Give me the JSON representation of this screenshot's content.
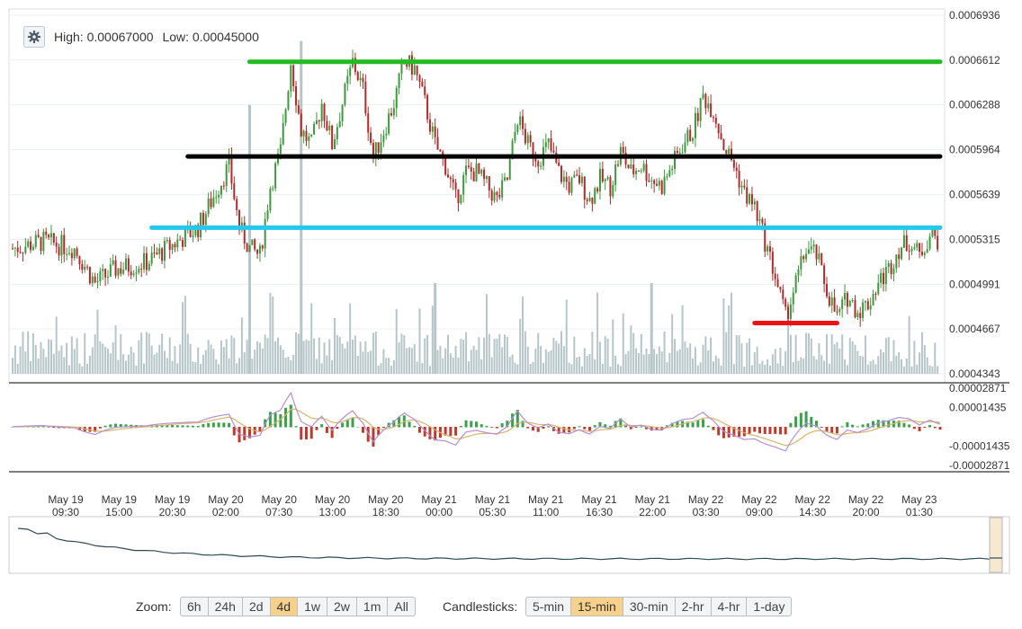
{
  "info": {
    "high_label": "High: 0.00067000",
    "low_label": "Low: 0.00045000",
    "settings_icon": "gear-icon"
  },
  "zoom": {
    "label": "Zoom:",
    "options": [
      "6h",
      "24h",
      "2d",
      "4d",
      "1w",
      "2w",
      "1m",
      "All"
    ],
    "active": "4d"
  },
  "candles": {
    "label": "Candlesticks:",
    "options": [
      "5-min",
      "15-min",
      "30-min",
      "2-hr",
      "4-hr",
      "1-day"
    ],
    "active": "15-min"
  },
  "colors": {
    "up": "#3c9a3c",
    "down": "#b32a2a",
    "volume": "#b6c6c8",
    "macd_pos": "#3aa04a",
    "macd_neg": "#c0392b",
    "signal": "#d9b46a",
    "macd_line": "#b48fd4",
    "navigator": "#2f4a55"
  },
  "chart_data": [
    {
      "type": "candlestick",
      "title": "",
      "y_ticks": [
        "0.0006936",
        "0.0006612",
        "0.0006288",
        "0.0005964",
        "0.0005639",
        "0.0005315",
        "0.0004991",
        "0.0004667",
        "0.0004343"
      ],
      "ylim": [
        0.0004343,
        0.0006936
      ],
      "x_ticks": [
        {
          "date": "May 19",
          "time": "09:30"
        },
        {
          "date": "May 19",
          "time": "15:00"
        },
        {
          "date": "May 19",
          "time": "20:30"
        },
        {
          "date": "May 20",
          "time": "02:00"
        },
        {
          "date": "May 20",
          "time": "07:30"
        },
        {
          "date": "May 20",
          "time": "13:00"
        },
        {
          "date": "May 20",
          "time": "18:30"
        },
        {
          "date": "May 21",
          "time": "00:00"
        },
        {
          "date": "May 21",
          "time": "05:30"
        },
        {
          "date": "May 21",
          "time": "11:00"
        },
        {
          "date": "May 21",
          "time": "16:30"
        },
        {
          "date": "May 21",
          "time": "22:00"
        },
        {
          "date": "May 22",
          "time": "03:30"
        },
        {
          "date": "May 22",
          "time": "09:00"
        },
        {
          "date": "May 22",
          "time": "14:30"
        },
        {
          "date": "May 22",
          "time": "20:00"
        },
        {
          "date": "May 23",
          "time": "01:30"
        }
      ],
      "price_path": [
        [
          0,
          0.000525
        ],
        [
          3,
          0.00053
        ],
        [
          6,
          0.000525
        ],
        [
          8,
          0.0005
        ],
        [
          10,
          0.00051
        ],
        [
          13,
          0.000515
        ],
        [
          16,
          0.00053
        ],
        [
          18,
          0.00054
        ],
        [
          20,
          0.00057
        ],
        [
          21,
          0.000585
        ],
        [
          22,
          0.00054
        ],
        [
          23,
          0.000525
        ],
        [
          24,
          0.00052
        ],
        [
          25,
          0.00057
        ],
        [
          26,
          0.000595
        ],
        [
          27,
          0.00066
        ],
        [
          28,
          0.00061
        ],
        [
          29,
          0.0006
        ],
        [
          30,
          0.00063
        ],
        [
          31,
          0.0006
        ],
        [
          32,
          0.00063
        ],
        [
          33,
          0.00066
        ],
        [
          34,
          0.00064
        ],
        [
          35,
          0.00059
        ],
        [
          36,
          0.00061
        ],
        [
          37,
          0.00063
        ],
        [
          38,
          0.00066
        ],
        [
          39,
          0.000655
        ],
        [
          40,
          0.00063
        ],
        [
          41,
          0.0006
        ],
        [
          42,
          0.000585
        ],
        [
          43,
          0.00056
        ],
        [
          44,
          0.00058
        ],
        [
          45,
          0.00058
        ],
        [
          46,
          0.00057
        ],
        [
          47,
          0.00056
        ],
        [
          48,
          0.000575
        ],
        [
          49,
          0.00062
        ],
        [
          50,
          0.0006
        ],
        [
          51,
          0.00059
        ],
        [
          52,
          0.0006
        ],
        [
          53,
          0.00058
        ],
        [
          54,
          0.00057
        ],
        [
          55,
          0.000575
        ],
        [
          56,
          0.00056
        ],
        [
          57,
          0.000575
        ],
        [
          58,
          0.00057
        ],
        [
          59,
          0.000595
        ],
        [
          60,
          0.00058
        ],
        [
          61,
          0.000585
        ],
        [
          62,
          0.000575
        ],
        [
          63,
          0.00057
        ],
        [
          64,
          0.000585
        ],
        [
          65,
          0.0006
        ],
        [
          66,
          0.00061
        ],
        [
          67,
          0.000635
        ],
        [
          68,
          0.000625
        ],
        [
          69,
          0.0006
        ],
        [
          70,
          0.000585
        ],
        [
          71,
          0.000565
        ],
        [
          72,
          0.000555
        ],
        [
          73,
          0.00053
        ],
        [
          74,
          0.000505
        ],
        [
          75,
          0.000475
        ],
        [
          76,
          0.0005
        ],
        [
          77,
          0.000525
        ],
        [
          78,
          0.00052
        ],
        [
          79,
          0.000495
        ],
        [
          80,
          0.000475
        ],
        [
          81,
          0.00049
        ],
        [
          82,
          0.00048
        ],
        [
          83,
          0.000485
        ],
        [
          84,
          0.0005
        ],
        [
          85,
          0.00051
        ],
        [
          86,
          0.000525
        ],
        [
          87,
          0.00053
        ],
        [
          88,
          0.00052
        ],
        [
          89,
          0.000535
        ],
        [
          90,
          0.00053
        ]
      ],
      "volume_spikes": [
        [
          23,
          0.0006288
        ],
        [
          28,
          0.000675
        ],
        [
          41,
          0.0005
        ],
        [
          62,
          0.0005
        ]
      ],
      "levels": [
        {
          "name": "resistance",
          "value": 0.00066,
          "color": "#22bb22",
          "from": 23,
          "to": 90
        },
        {
          "name": "mid",
          "value": 0.0005915,
          "color": "#000000",
          "from": 17,
          "to": 90
        },
        {
          "name": "support",
          "value": 0.00054,
          "color": "#22c8ee",
          "from": 13.5,
          "to": 90
        },
        {
          "name": "low",
          "value": 0.000471,
          "color": "#ee1111",
          "from": 72,
          "to": 80
        }
      ]
    },
    {
      "type": "macd",
      "y_ticks": [
        "0.00002871",
        "0.00001435",
        "-0.00001435",
        "-0.00002871"
      ],
      "ylim": [
        -2.871e-05,
        2.871e-05
      ]
    }
  ]
}
